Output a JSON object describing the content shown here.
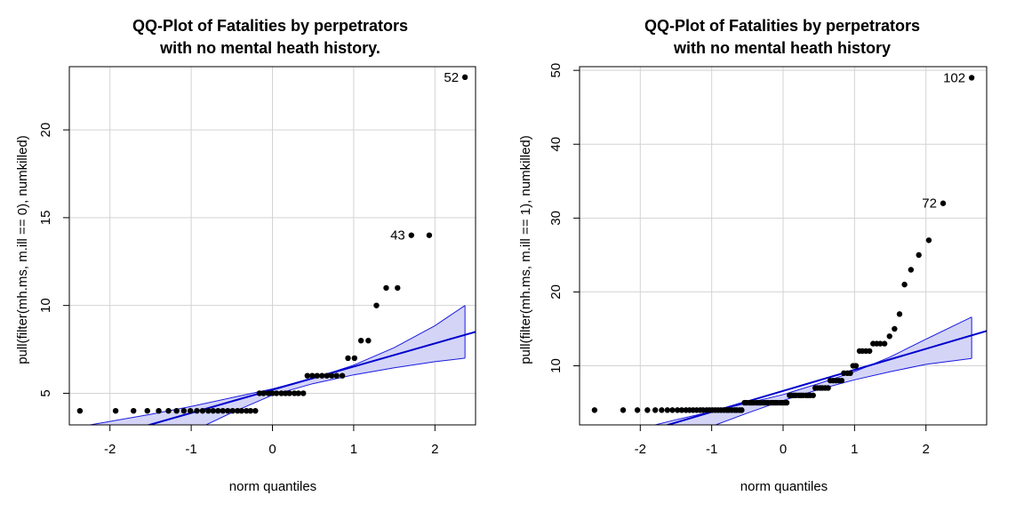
{
  "chart_data": [
    {
      "type": "scatter",
      "title_line1": "QQ-Plot of Fatalities by perpetrators",
      "title_line2": "with no mental heath history.",
      "xlabel": "norm quantiles",
      "ylabel": "pull(filter(mh.ms, m.ill == 0), numkilled)",
      "xlim": [
        -2.5,
        2.5
      ],
      "ylim": [
        3.2,
        23.6
      ],
      "x_ticks": [
        -2,
        -1,
        0,
        1,
        2
      ],
      "y_ticks": [
        5,
        10,
        15,
        20
      ],
      "points": [
        [
          -2.37,
          4
        ],
        [
          -1.93,
          4
        ],
        [
          -1.71,
          4
        ],
        [
          -1.54,
          4
        ],
        [
          -1.4,
          4
        ],
        [
          -1.28,
          4
        ],
        [
          -1.18,
          4
        ],
        [
          -1.09,
          4
        ],
        [
          -1.01,
          4
        ],
        [
          -0.93,
          4
        ],
        [
          -0.86,
          4
        ],
        [
          -0.79,
          4
        ],
        [
          -0.73,
          4
        ],
        [
          -0.67,
          4
        ],
        [
          -0.61,
          4
        ],
        [
          -0.55,
          4
        ],
        [
          -0.49,
          4
        ],
        [
          -0.43,
          4
        ],
        [
          -0.38,
          4
        ],
        [
          -0.32,
          4
        ],
        [
          -0.27,
          4
        ],
        [
          -0.21,
          4
        ],
        [
          -0.16,
          5
        ],
        [
          -0.11,
          5
        ],
        [
          -0.05,
          5
        ],
        [
          0.0,
          5
        ],
        [
          0.05,
          5
        ],
        [
          0.11,
          5
        ],
        [
          0.16,
          5
        ],
        [
          0.21,
          5
        ],
        [
          0.27,
          5
        ],
        [
          0.32,
          5
        ],
        [
          0.38,
          5
        ],
        [
          0.43,
          6
        ],
        [
          0.49,
          6
        ],
        [
          0.55,
          6
        ],
        [
          0.61,
          6
        ],
        [
          0.67,
          6
        ],
        [
          0.73,
          6
        ],
        [
          0.79,
          6
        ],
        [
          0.86,
          6
        ],
        [
          0.93,
          7
        ],
        [
          1.01,
          7
        ],
        [
          1.09,
          8
        ],
        [
          1.18,
          8
        ],
        [
          1.28,
          10
        ],
        [
          1.4,
          11
        ],
        [
          1.54,
          11
        ],
        [
          1.71,
          14
        ],
        [
          1.93,
          14
        ],
        [
          2.37,
          23
        ]
      ],
      "labels": [
        {
          "text": "52",
          "x": 2.37,
          "y": 23
        },
        {
          "text": "43",
          "x": 1.71,
          "y": 14
        }
      ],
      "ref_line": {
        "intercept": 5.2,
        "slope": 1.32
      },
      "band": {
        "x": [
          -2.37,
          -1.5,
          -1.0,
          -0.5,
          0.0,
          0.5,
          1.0,
          1.5,
          2.0,
          2.37
        ],
        "upper": [
          3.1,
          3.8,
          4.25,
          4.75,
          5.25,
          5.85,
          6.6,
          7.6,
          8.85,
          10.0
        ],
        "lower": [
          -1.6,
          1.6,
          2.8,
          3.9,
          4.9,
          5.55,
          6.05,
          6.45,
          6.8,
          7.0
        ]
      }
    },
    {
      "type": "scatter",
      "title_line1": "QQ-Plot of Fatalities by perpetrators",
      "title_line2": "with no mental heath history",
      "xlabel": "norm quantiles",
      "ylabel": "pull(filter(mh.ms, m.ill == 1), numkilled)",
      "xlim": [
        -2.85,
        2.85
      ],
      "ylim": [
        2.0,
        50.5
      ],
      "x_ticks": [
        -2,
        -1,
        0,
        1,
        2
      ],
      "y_ticks": [
        10,
        20,
        30,
        40,
        50
      ],
      "points": [
        [
          -2.64,
          4
        ],
        [
          -2.24,
          4
        ],
        [
          -2.04,
          4
        ],
        [
          -1.9,
          4
        ],
        [
          -1.79,
          4
        ],
        [
          -1.7,
          4
        ],
        [
          -1.62,
          4
        ],
        [
          -1.55,
          4
        ],
        [
          -1.48,
          4
        ],
        [
          -1.42,
          4
        ],
        [
          -1.36,
          4
        ],
        [
          -1.31,
          4
        ],
        [
          -1.26,
          4
        ],
        [
          -1.21,
          4
        ],
        [
          -1.16,
          4
        ],
        [
          -1.12,
          4
        ],
        [
          -1.07,
          4
        ],
        [
          -1.03,
          4
        ],
        [
          -0.99,
          4
        ],
        [
          -0.95,
          4
        ],
        [
          -0.91,
          4
        ],
        [
          -0.87,
          4
        ],
        [
          -0.83,
          4
        ],
        [
          -0.79,
          4
        ],
        [
          -0.76,
          4
        ],
        [
          -0.72,
          4
        ],
        [
          -0.68,
          4
        ],
        [
          -0.65,
          4
        ],
        [
          -0.61,
          4
        ],
        [
          -0.58,
          4
        ],
        [
          -0.54,
          5
        ],
        [
          -0.51,
          5
        ],
        [
          -0.47,
          5
        ],
        [
          -0.44,
          5
        ],
        [
          -0.41,
          5
        ],
        [
          -0.37,
          5
        ],
        [
          -0.34,
          5
        ],
        [
          -0.31,
          5
        ],
        [
          -0.27,
          5
        ],
        [
          -0.24,
          5
        ],
        [
          -0.21,
          5
        ],
        [
          -0.17,
          5
        ],
        [
          -0.14,
          5
        ],
        [
          -0.11,
          5
        ],
        [
          -0.08,
          5
        ],
        [
          -0.04,
          5
        ],
        [
          -0.01,
          5
        ],
        [
          0.02,
          5
        ],
        [
          0.05,
          5
        ],
        [
          0.09,
          6
        ],
        [
          0.12,
          6
        ],
        [
          0.15,
          6
        ],
        [
          0.18,
          6
        ],
        [
          0.22,
          6
        ],
        [
          0.25,
          6
        ],
        [
          0.28,
          6
        ],
        [
          0.32,
          6
        ],
        [
          0.35,
          6
        ],
        [
          0.38,
          6
        ],
        [
          0.42,
          6
        ],
        [
          0.45,
          7
        ],
        [
          0.48,
          7
        ],
        [
          0.52,
          7
        ],
        [
          0.55,
          7
        ],
        [
          0.59,
          7
        ],
        [
          0.63,
          7
        ],
        [
          0.66,
          8
        ],
        [
          0.7,
          8
        ],
        [
          0.74,
          8
        ],
        [
          0.78,
          8
        ],
        [
          0.82,
          8
        ],
        [
          0.85,
          9
        ],
        [
          0.9,
          9
        ],
        [
          0.94,
          9
        ],
        [
          0.98,
          10
        ],
        [
          1.02,
          10
        ],
        [
          1.07,
          12
        ],
        [
          1.11,
          12
        ],
        [
          1.16,
          12
        ],
        [
          1.21,
          12
        ],
        [
          1.26,
          13
        ],
        [
          1.31,
          13
        ],
        [
          1.36,
          13
        ],
        [
          1.42,
          13
        ],
        [
          1.49,
          14
        ],
        [
          1.56,
          15
        ],
        [
          1.63,
          17
        ],
        [
          1.7,
          21
        ],
        [
          1.79,
          23
        ],
        [
          1.9,
          25
        ],
        [
          2.04,
          27
        ],
        [
          2.24,
          32
        ],
        [
          2.64,
          49
        ]
      ],
      "labels": [
        {
          "text": "102",
          "x": 2.64,
          "y": 49
        },
        {
          "text": "72",
          "x": 2.24,
          "y": 32
        }
      ],
      "ref_line": {
        "intercept": 6.6,
        "slope": 2.85
      },
      "band": {
        "x": [
          -2.64,
          -2.0,
          -1.5,
          -1.0,
          -0.5,
          0.0,
          0.5,
          1.0,
          1.5,
          2.0,
          2.64
        ],
        "upper": [
          0.5,
          1.5,
          2.7,
          3.8,
          4.95,
          6.1,
          7.6,
          9.2,
          11.2,
          13.6,
          16.6
        ],
        "lower": [
          -5.5,
          -3.0,
          -0.5,
          1.8,
          3.6,
          5.3,
          6.8,
          8.1,
          9.2,
          10.2,
          11.0
        ]
      }
    }
  ]
}
